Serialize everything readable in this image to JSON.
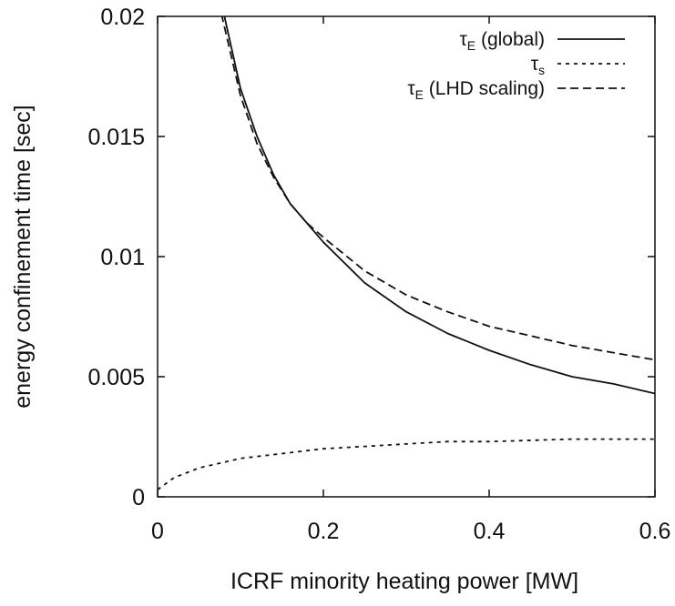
{
  "chart_data": {
    "type": "line",
    "xlabel": "ICRF minority heating power  [MW]",
    "ylabel": "energy confinement time  [sec]",
    "xlim": [
      0,
      0.6
    ],
    "ylim": [
      0,
      0.02
    ],
    "x_ticks": [
      0,
      0.2,
      0.4,
      0.6
    ],
    "x_tick_labels": [
      "0",
      "0.2",
      "0.4",
      "0.6"
    ],
    "y_ticks": [
      0,
      0.005,
      0.01,
      0.015,
      0.02
    ],
    "y_tick_labels": [
      "0",
      "0.005",
      "0.01",
      "0.015",
      "0.02"
    ],
    "grid": false,
    "legend_position": "top-right",
    "series": [
      {
        "name": "τE (global)",
        "symbol": "τ",
        "subscript": "E",
        "suffix": " (global)",
        "line_style": "solid",
        "x": [
          0.08,
          0.1,
          0.12,
          0.14,
          0.16,
          0.18,
          0.2,
          0.25,
          0.3,
          0.35,
          0.4,
          0.45,
          0.5,
          0.55,
          0.6
        ],
        "y": [
          0.0201,
          0.017,
          0.015,
          0.0134,
          0.0122,
          0.0114,
          0.0106,
          0.0089,
          0.0077,
          0.0068,
          0.0061,
          0.0055,
          0.005,
          0.0047,
          0.0043
        ]
      },
      {
        "name": "τs",
        "symbol": "τ",
        "subscript": "s",
        "suffix": "",
        "line_style": "dotted",
        "x": [
          0,
          0.02,
          0.05,
          0.1,
          0.15,
          0.2,
          0.25,
          0.3,
          0.35,
          0.4,
          0.5,
          0.6
        ],
        "y": [
          0.0003,
          0.0008,
          0.0012,
          0.0016,
          0.0018,
          0.002,
          0.0021,
          0.0022,
          0.0023,
          0.0023,
          0.0024,
          0.0024
        ]
      },
      {
        "name": "τE (LHD scaling)",
        "symbol": "τ",
        "subscript": "E",
        "suffix": " (LHD scaling)",
        "line_style": "dashed",
        "x": [
          0.077,
          0.1,
          0.12,
          0.14,
          0.16,
          0.18,
          0.2,
          0.25,
          0.3,
          0.35,
          0.4,
          0.45,
          0.5,
          0.55,
          0.6
        ],
        "y": [
          0.0201,
          0.0167,
          0.0147,
          0.0133,
          0.0122,
          0.0114,
          0.0108,
          0.0094,
          0.0084,
          0.0077,
          0.0071,
          0.0067,
          0.0063,
          0.006,
          0.0057
        ]
      }
    ]
  }
}
